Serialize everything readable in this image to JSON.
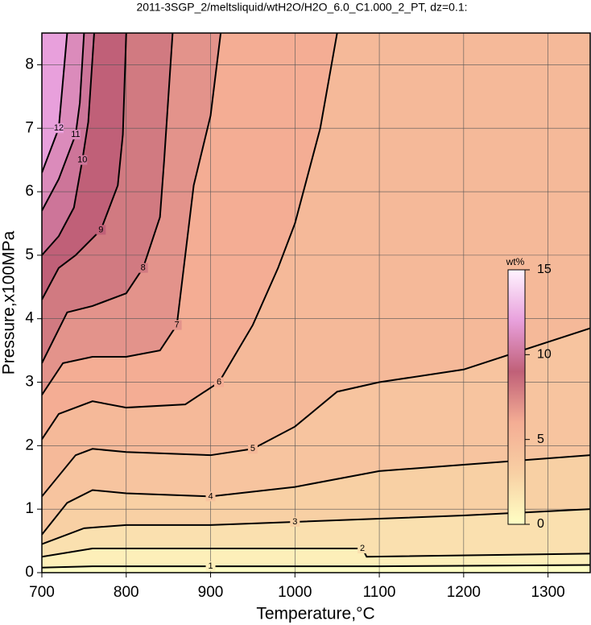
{
  "chart_data": {
    "type": "contour",
    "title": "2011-3SGP_2/meltsliquid/wtH2O/H2O_6.0_C1.000_2_PT, dz=0.1:",
    "xlabel": "Temperature,°C",
    "ylabel": "Pressure,x100MPa",
    "xlim": [
      700,
      1350
    ],
    "ylim": [
      0,
      8.5
    ],
    "xticks": [
      700,
      800,
      900,
      1000,
      1100,
      1200,
      1300
    ],
    "yticks": [
      0,
      1,
      2,
      3,
      4,
      5,
      6,
      7,
      8
    ],
    "grid": true,
    "colorbar": {
      "label": "wt%",
      "lim": [
        0,
        15
      ],
      "ticks": [
        0,
        5,
        10,
        15
      ],
      "colors": [
        "#ffffc4",
        "#f8d0a4",
        "#f4ad94",
        "#c06078",
        "#e8a0dc",
        "#fff4ff"
      ]
    },
    "contours": [
      {
        "level": 1,
        "x": [
          700,
          760,
          900,
          1100,
          1350
        ],
        "y": [
          0.08,
          0.1,
          0.1,
          0.1,
          0.12
        ]
      },
      {
        "level": 2,
        "x": [
          700,
          760,
          1080,
          1085,
          1350
        ],
        "y": [
          0.25,
          0.38,
          0.38,
          0.25,
          0.3
        ]
      },
      {
        "level": 3,
        "x": [
          700,
          750,
          800,
          900,
          1000,
          1100,
          1200,
          1350
        ],
        "y": [
          0.45,
          0.7,
          0.75,
          0.75,
          0.8,
          0.85,
          0.9,
          1.0
        ]
      },
      {
        "level": 4,
        "x": [
          700,
          730,
          760,
          800,
          900,
          1000,
          1100,
          1200,
          1350
        ],
        "y": [
          0.6,
          1.1,
          1.3,
          1.25,
          1.2,
          1.35,
          1.6,
          1.7,
          1.85
        ]
      },
      {
        "level": 5,
        "x": [
          700,
          740,
          760,
          800,
          900,
          950,
          1000,
          1050,
          1100,
          1200,
          1350
        ],
        "y": [
          1.2,
          1.85,
          1.95,
          1.9,
          1.85,
          1.95,
          2.3,
          2.85,
          3.0,
          3.2,
          3.85
        ]
      },
      {
        "level": 6,
        "x": [
          700,
          720,
          760,
          800,
          870,
          910,
          950,
          980,
          1000,
          1030,
          1050
        ],
        "y": [
          2.1,
          2.5,
          2.7,
          2.6,
          2.65,
          3.0,
          3.9,
          4.8,
          5.5,
          7.0,
          8.5
        ]
      },
      {
        "level": 7,
        "x": [
          700,
          725,
          760,
          800,
          840,
          860,
          870,
          880,
          900,
          912
        ],
        "y": [
          2.8,
          3.3,
          3.4,
          3.4,
          3.5,
          3.9,
          5.0,
          6.1,
          7.2,
          8.5
        ]
      },
      {
        "level": 8,
        "x": [
          700,
          730,
          760,
          800,
          820,
          840,
          845,
          850,
          855
        ],
        "y": [
          3.3,
          4.1,
          4.2,
          4.4,
          4.8,
          5.6,
          6.5,
          7.5,
          8.5
        ]
      },
      {
        "level": 9,
        "x": [
          700,
          720,
          740,
          770,
          790,
          796,
          800
        ],
        "y": [
          4.3,
          4.8,
          5.0,
          5.4,
          6.1,
          6.9,
          8.5
        ]
      },
      {
        "level": 10,
        "x": [
          700,
          720,
          738,
          748,
          755,
          762
        ],
        "y": [
          5.0,
          5.3,
          5.75,
          6.5,
          7.1,
          8.5
        ]
      },
      {
        "level": 11,
        "x": [
          700,
          720,
          740,
          745,
          750
        ],
        "y": [
          5.7,
          6.2,
          6.9,
          7.4,
          8.5
        ]
      },
      {
        "level": 12,
        "x": [
          700,
          720,
          730
        ],
        "y": [
          6.3,
          7.0,
          8.5
        ]
      }
    ]
  }
}
